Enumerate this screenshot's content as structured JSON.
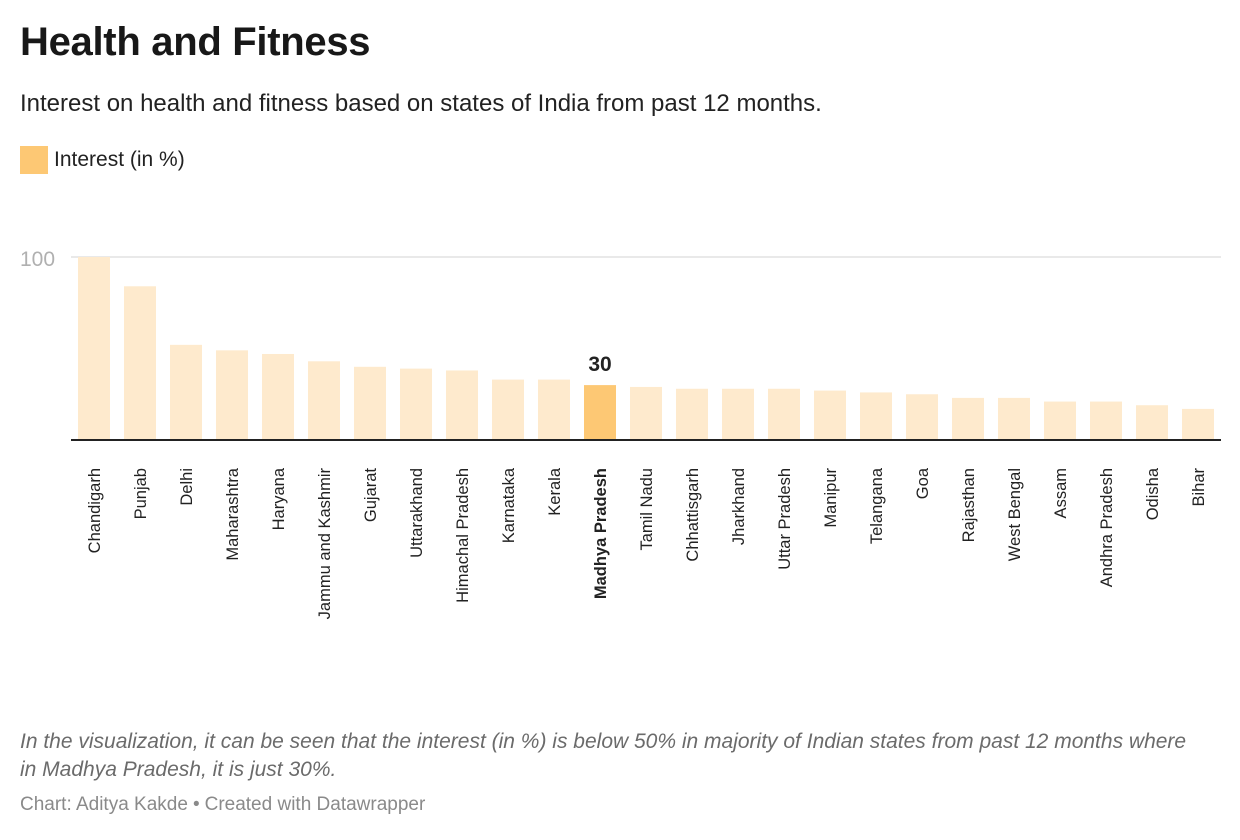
{
  "header": {
    "title": "Health and Fitness",
    "subtitle": "Interest on health and fitness based on states of India from past 12 months."
  },
  "legend": {
    "label": "Interest (in %)",
    "color": "#fdc874"
  },
  "colors": {
    "bar": "#feeacd",
    "highlight": "#fdc874",
    "axis": "#222222",
    "grid": "#e2e2e2",
    "tick_text": "#b0b0b0"
  },
  "chart_data": {
    "type": "bar",
    "categories": [
      "Chandigarh",
      "Punjab",
      "Delhi",
      "Maharashtra",
      "Haryana",
      "Jammu and Kashmir",
      "Gujarat",
      "Uttarakhand",
      "Himachal Pradesh",
      "Karnataka",
      "Kerala",
      "Madhya Pradesh",
      "Tamil Nadu",
      "Chhattisgarh",
      "Jharkhand",
      "Uttar Pradesh",
      "Manipur",
      "Telangana",
      "Goa",
      "Rajasthan",
      "West Bengal",
      "Assam",
      "Andhra Pradesh",
      "Odisha",
      "Bihar"
    ],
    "values": [
      100,
      84,
      52,
      49,
      47,
      43,
      40,
      39,
      38,
      33,
      33,
      30,
      29,
      28,
      28,
      28,
      27,
      26,
      25,
      23,
      23,
      21,
      21,
      19,
      17
    ],
    "highlight": "Madhya Pradesh",
    "value_labels": [
      {
        "category": "Madhya Pradesh",
        "text": "30"
      }
    ],
    "yticks": [
      {
        "value": 100,
        "label": "100"
      }
    ],
    "ylim": [
      0,
      100
    ],
    "grid": true
  },
  "footer": {
    "note": "In the visualization, it can be seen that the interest (in %) is below 50% in majority of Indian states from past 12 months where in Madhya Pradesh, it is just 30%.",
    "credit_author": "Chart: Aditya Kakde",
    "credit_separator": "•",
    "credit_tool": "Created with Datawrapper"
  }
}
